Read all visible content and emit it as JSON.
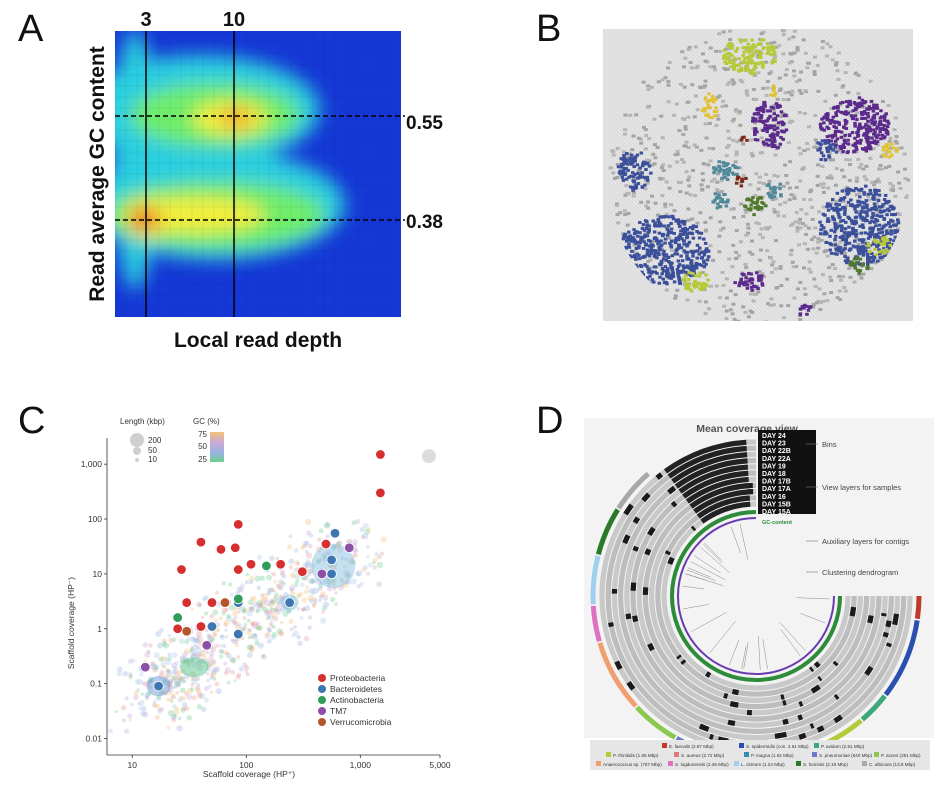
{
  "panels": {
    "a": {
      "letter": "A"
    },
    "b": {
      "letter": "B"
    },
    "c": {
      "letter": "C"
    },
    "d": {
      "letter": "D"
    }
  },
  "chart_data": [
    {
      "id": "A",
      "type": "heatmap",
      "xlabel": "Local read depth",
      "ylabel": "Read average GC content",
      "vlines": [
        {
          "label": "3",
          "x": 3
        },
        {
          "label": "10",
          "x": 10
        }
      ],
      "hlines": [
        {
          "label": "0.55",
          "y": 0.55
        },
        {
          "label": "0.38",
          "y": 0.38
        }
      ],
      "peaks": [
        {
          "x": 3,
          "y": 0.38,
          "intensity": "high"
        },
        {
          "x": 10,
          "y": 0.55,
          "intensity": "medium"
        }
      ],
      "colors": [
        "#1a3cd8",
        "#2ad4e0",
        "#7ef27a",
        "#f2ee3a",
        "#f58a2a",
        "#e22a20"
      ]
    },
    {
      "id": "B",
      "type": "other",
      "description_colors": [
        "#c8c8c8",
        "#5b2a8c",
        "#3b4f9a",
        "#b5c93a",
        "#4f8a9a",
        "#e0c23a",
        "#4f7a2a",
        "#7a2a1a"
      ]
    },
    {
      "id": "C",
      "type": "scatter",
      "xlabel": "Scaffold coverage (HP⁺)",
      "ylabel": "Scaffold coverage (HP⁻)",
      "xscale": "log",
      "yscale": "log",
      "xlim": [
        6,
        5000
      ],
      "ylim": [
        0.005,
        3000
      ],
      "xticks": [
        "10",
        "100",
        "1,000",
        "5,000"
      ],
      "yticks": [
        "0.01",
        "0.1",
        "1",
        "10",
        "100",
        "1,000"
      ],
      "size_legend": {
        "title": "Length (kbp)",
        "items": [
          "200",
          "50",
          "10"
        ]
      },
      "gc_legend": {
        "title": "GC (%)",
        "ticks": [
          "75",
          "50",
          "25"
        ]
      },
      "series": [
        {
          "name": "Proteobacteria",
          "color": "#d62f2f",
          "points": [
            [
              1500,
              1500
            ],
            [
              1500,
              300
            ],
            [
              85,
              80
            ],
            [
              85,
              12
            ],
            [
              200,
              15
            ],
            [
              310,
              11
            ],
            [
              500,
              35
            ],
            [
              40,
              38
            ],
            [
              60,
              28
            ],
            [
              80,
              30
            ],
            [
              27,
              12
            ],
            [
              50,
              3
            ],
            [
              65,
              3
            ],
            [
              110,
              15
            ],
            [
              25,
              1
            ],
            [
              30,
              3
            ],
            [
              40,
              1.1
            ]
          ]
        },
        {
          "name": "Bacteroidetes",
          "color": "#3d76b0",
          "points": [
            [
              600,
              55
            ],
            [
              560,
              18
            ],
            [
              560,
              10
            ],
            [
              240,
              3
            ],
            [
              85,
              3
            ],
            [
              85,
              0.8
            ],
            [
              50,
              1.1
            ],
            [
              17,
              0.09
            ]
          ]
        },
        {
          "name": "Actinobacteria",
          "color": "#2e9e5a",
          "points": [
            [
              150,
              14
            ],
            [
              85,
              3.5
            ],
            [
              25,
              1.6
            ]
          ]
        },
        {
          "name": "TM7",
          "color": "#8e4fa6",
          "points": [
            [
              800,
              30
            ],
            [
              460,
              10
            ],
            [
              45,
              0.5
            ],
            [
              13,
              0.2
            ]
          ]
        },
        {
          "name": "Verrucomicrobia",
          "color": "#b5552a",
          "points": [
            [
              65,
              3
            ],
            [
              30,
              0.9
            ]
          ]
        }
      ]
    },
    {
      "id": "D",
      "type": "other",
      "title": "Mean coverage view",
      "annotations": [
        "Bins",
        "View layers for samples",
        "Auxiliary layers for contigs",
        "Clustering dendrogram"
      ],
      "sample_layers": [
        "DAY 24",
        "DAY 23",
        "DAY 22B",
        "DAY 22A",
        "DAY 19",
        "DAY 18",
        "DAY 17B",
        "DAY 17A",
        "DAY 16",
        "DAY 15B",
        "DAY 15A"
      ],
      "aux_layer": "GC-content",
      "legend": [
        {
          "name": "E. faecalis",
          "size": "(2.87 Mbp)",
          "color": "#c0392b"
        },
        {
          "name": "S. epidermidis",
          "size": "(con. 2.61 Mbp)",
          "color": "#2a4fb0"
        },
        {
          "name": "P. avidum",
          "size": "(2.51 Mbp)",
          "color": "#3da87a"
        },
        {
          "name": "P. rhinitidis",
          "size": "(1.85 Mbp)",
          "color": "#b5c93a"
        },
        {
          "name": "S. aureus",
          "size": "(2.72 Mbp)",
          "color": "#e07a7a"
        },
        {
          "name": "P. magna",
          "size": "(1.92 Mbp)",
          "color": "#3a8ab0"
        },
        {
          "name": "S. pneumoniae",
          "size": "(640 Mbp)",
          "color": "#6a7ac8"
        },
        {
          "name": "P. acnes",
          "size": "(251 Mbp)",
          "color": "#8ac850"
        },
        {
          "name": "Anaerococcus sp.",
          "size": "(757 Mbp)",
          "color": "#f0a070"
        },
        {
          "name": "S. lugdunensis",
          "size": "(2.36 Mbp)",
          "color": "#e070c0"
        },
        {
          "name": "L. citreum",
          "size": "(1.24 Mbp)",
          "color": "#a0d0f0"
        },
        {
          "name": "S. hominis",
          "size": "(2.19 Mbp)",
          "color": "#2a7a2a"
        },
        {
          "name": "C. albicans",
          "size": "(13.8 Mbp)",
          "color": "#a8a8a8"
        }
      ]
    }
  ]
}
